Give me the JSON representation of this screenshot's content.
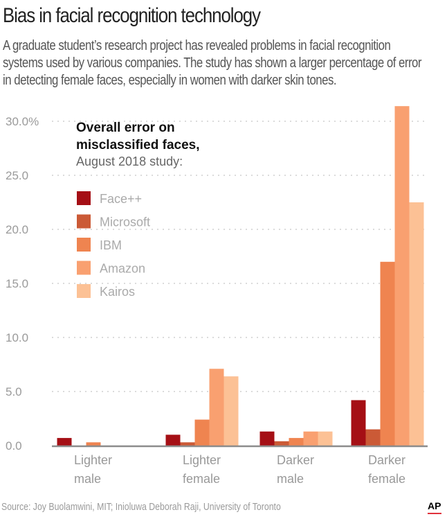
{
  "header": {
    "title": "Bias in facial recognition technology",
    "subtitle": "A graduate student’s research project has revealed problems in facial recognition systems used by various companies. The study has shown a larger percentage of error in detecting female faces, especially in women with darker skin tones."
  },
  "footer": {
    "source": "Source: Joy Buolamwini, MIT; Inioluwa Deborah Raji, University of Toronto",
    "logo": "AP"
  },
  "chart_data": {
    "type": "bar",
    "title": "Overall error on misclassified faces,",
    "subtitle": "August 2018 study:",
    "xlabel": "",
    "ylabel": "",
    "ylim": [
      0,
      30
    ],
    "yticks": [
      0,
      5,
      10,
      15,
      20,
      25,
      30
    ],
    "ytick_labels": [
      "0.0",
      "5.0",
      "10.0",
      "15.0",
      "20.0",
      "25.0",
      "30.0%"
    ],
    "grid": true,
    "legend_position": "top-left",
    "categories": [
      [
        "Lighter",
        "male"
      ],
      [
        "Lighter",
        "female"
      ],
      [
        "Darker",
        "male"
      ],
      [
        "Darker",
        "female"
      ]
    ],
    "series": [
      {
        "name": "Face++",
        "color": "#a50f15",
        "values": [
          0.7,
          1.0,
          1.3,
          4.2
        ]
      },
      {
        "name": "Microsoft",
        "color": "#cb5a36",
        "values": [
          0.0,
          0.3,
          0.4,
          1.5
        ]
      },
      {
        "name": "IBM",
        "color": "#ef8450",
        "values": [
          0.3,
          2.4,
          0.7,
          17.0
        ]
      },
      {
        "name": "Amazon",
        "color": "#f9a070",
        "values": [
          0.0,
          7.1,
          1.3,
          31.4
        ]
      },
      {
        "name": "Kairos",
        "color": "#fcc195",
        "values": [
          0.0,
          6.4,
          1.3,
          22.5
        ]
      }
    ]
  }
}
